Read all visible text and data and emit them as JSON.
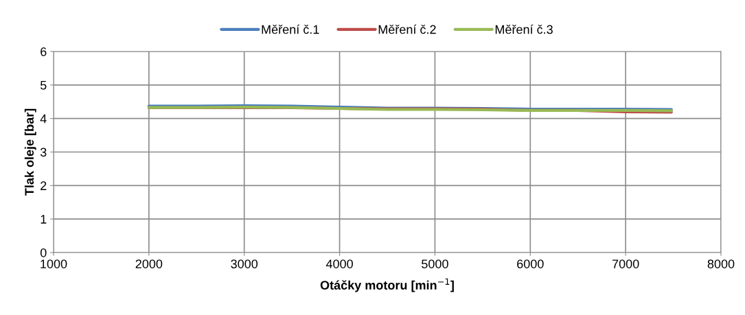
{
  "chart_data": {
    "type": "line",
    "xlabel": "Otáčky motoru [min$^{−1}$]",
    "ylabel": "Tlak oleje [bar]",
    "xlim": [
      1000,
      8000
    ],
    "xticks": [
      1000,
      2000,
      3000,
      4000,
      5000,
      6000,
      7000,
      8000
    ],
    "ylim": [
      0,
      6
    ],
    "yticks": [
      0,
      1,
      2,
      3,
      4,
      5,
      6
    ],
    "grid": true,
    "legend": "top",
    "marker": "none",
    "line_style": "solid",
    "x": [
      2000,
      2500,
      3000,
      3500,
      4000,
      4500,
      5000,
      5500,
      6000,
      6500,
      7000,
      7480
    ],
    "series": [
      {
        "name": "Měření č.1",
        "color": "#4a7ebb",
        "values": [
          4.37,
          4.37,
          4.38,
          4.37,
          4.34,
          4.31,
          4.31,
          4.3,
          4.28,
          4.28,
          4.28,
          4.27
        ]
      },
      {
        "name": "Měření č.2",
        "color": "#be4b48",
        "values": [
          4.32,
          4.32,
          4.32,
          4.32,
          4.3,
          4.29,
          4.29,
          4.28,
          4.24,
          4.24,
          4.2,
          4.19
        ]
      },
      {
        "name": "Měření č.3",
        "color": "#98b954",
        "values": [
          4.33,
          4.33,
          4.34,
          4.33,
          4.3,
          4.27,
          4.27,
          4.26,
          4.24,
          4.24,
          4.24,
          4.23
        ]
      }
    ]
  }
}
